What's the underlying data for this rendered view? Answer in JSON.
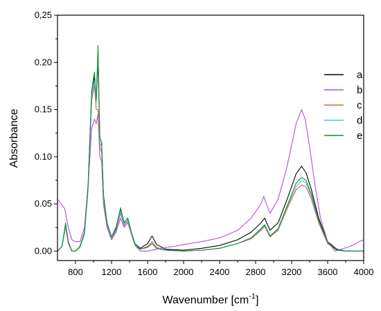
{
  "chart_data": {
    "type": "line",
    "title": "",
    "xlabel": "Wavenumber [cm",
    "xlabel_sup": "-1",
    "xlabel_close": "]",
    "ylabel": "Absorbance",
    "xlim": [
      600,
      4000
    ],
    "ylim": [
      -0.01,
      0.25
    ],
    "x_ticks": [
      800,
      1200,
      1600,
      2000,
      2400,
      2800,
      3200,
      3600,
      4000
    ],
    "x_tick_labels": [
      "800",
      "1200",
      "1600",
      "2000",
      "2400",
      "2800",
      "3200",
      "3600",
      "4000"
    ],
    "y_ticks": [
      0.0,
      0.05,
      0.1,
      0.15,
      0.2,
      0.25
    ],
    "y_tick_labels": [
      "0.00",
      "0.05",
      "0.10",
      "0.15",
      "0.20",
      "0,25"
    ],
    "grid": false,
    "legend_position": "right",
    "series": [
      {
        "name": "a",
        "color": "#000000",
        "points": [
          [
            600,
            0.0
          ],
          [
            650,
            0.005
          ],
          [
            690,
            0.028
          ],
          [
            720,
            0.01
          ],
          [
            760,
            0.0
          ],
          [
            800,
            0.0
          ],
          [
            850,
            0.005
          ],
          [
            900,
            0.02
          ],
          [
            940,
            0.07
          ],
          [
            980,
            0.17
          ],
          [
            1010,
            0.185
          ],
          [
            1030,
            0.16
          ],
          [
            1050,
            0.2
          ],
          [
            1070,
            0.12
          ],
          [
            1090,
            0.115
          ],
          [
            1110,
            0.06
          ],
          [
            1150,
            0.03
          ],
          [
            1200,
            0.015
          ],
          [
            1250,
            0.025
          ],
          [
            1300,
            0.045
          ],
          [
            1340,
            0.03
          ],
          [
            1380,
            0.035
          ],
          [
            1420,
            0.02
          ],
          [
            1460,
            0.008
          ],
          [
            1520,
            0.003
          ],
          [
            1600,
            0.008
          ],
          [
            1650,
            0.016
          ],
          [
            1700,
            0.007
          ],
          [
            1800,
            0.002
          ],
          [
            2000,
            0.001
          ],
          [
            2200,
            0.003
          ],
          [
            2400,
            0.006
          ],
          [
            2600,
            0.012
          ],
          [
            2750,
            0.02
          ],
          [
            2860,
            0.03
          ],
          [
            2900,
            0.035
          ],
          [
            2960,
            0.022
          ],
          [
            3050,
            0.03
          ],
          [
            3150,
            0.055
          ],
          [
            3250,
            0.082
          ],
          [
            3310,
            0.09
          ],
          [
            3360,
            0.083
          ],
          [
            3420,
            0.065
          ],
          [
            3500,
            0.035
          ],
          [
            3600,
            0.01
          ],
          [
            3700,
            0.002
          ],
          [
            3800,
            0.0
          ],
          [
            4000,
            0.0
          ]
        ]
      },
      {
        "name": "b",
        "color": "#b04fe0",
        "points": [
          [
            600,
            0.055
          ],
          [
            640,
            0.05
          ],
          [
            680,
            0.045
          ],
          [
            720,
            0.025
          ],
          [
            760,
            0.012
          ],
          [
            800,
            0.01
          ],
          [
            850,
            0.01
          ],
          [
            900,
            0.025
          ],
          [
            940,
            0.07
          ],
          [
            980,
            0.13
          ],
          [
            1010,
            0.14
          ],
          [
            1030,
            0.135
          ],
          [
            1050,
            0.145
          ],
          [
            1070,
            0.1
          ],
          [
            1090,
            0.095
          ],
          [
            1110,
            0.05
          ],
          [
            1150,
            0.025
          ],
          [
            1200,
            0.012
          ],
          [
            1250,
            0.02
          ],
          [
            1300,
            0.035
          ],
          [
            1340,
            0.025
          ],
          [
            1380,
            0.03
          ],
          [
            1420,
            0.018
          ],
          [
            1460,
            0.006
          ],
          [
            1520,
            0.0
          ],
          [
            1600,
            0.0
          ],
          [
            1700,
            0.002
          ],
          [
            1800,
            0.004
          ],
          [
            1900,
            0.005
          ],
          [
            2000,
            0.007
          ],
          [
            2200,
            0.01
          ],
          [
            2400,
            0.014
          ],
          [
            2600,
            0.022
          ],
          [
            2750,
            0.035
          ],
          [
            2860,
            0.05
          ],
          [
            2890,
            0.058
          ],
          [
            2920,
            0.05
          ],
          [
            2960,
            0.04
          ],
          [
            3050,
            0.055
          ],
          [
            3150,
            0.09
          ],
          [
            3250,
            0.135
          ],
          [
            3310,
            0.15
          ],
          [
            3350,
            0.14
          ],
          [
            3400,
            0.11
          ],
          [
            3460,
            0.07
          ],
          [
            3520,
            0.035
          ],
          [
            3600,
            0.01
          ],
          [
            3680,
            0.0
          ],
          [
            3750,
            0.002
          ],
          [
            3850,
            0.005
          ],
          [
            3950,
            0.01
          ],
          [
            4000,
            0.012
          ]
        ]
      },
      {
        "name": "c",
        "color": "#e0604a",
        "points": [
          [
            600,
            0.0
          ],
          [
            650,
            0.005
          ],
          [
            690,
            0.025
          ],
          [
            720,
            0.008
          ],
          [
            760,
            0.0
          ],
          [
            800,
            0.0
          ],
          [
            850,
            0.004
          ],
          [
            900,
            0.018
          ],
          [
            940,
            0.065
          ],
          [
            980,
            0.16
          ],
          [
            1010,
            0.175
          ],
          [
            1030,
            0.15
          ],
          [
            1050,
            0.15
          ],
          [
            1070,
            0.11
          ],
          [
            1090,
            0.105
          ],
          [
            1110,
            0.055
          ],
          [
            1150,
            0.028
          ],
          [
            1200,
            0.013
          ],
          [
            1250,
            0.022
          ],
          [
            1300,
            0.04
          ],
          [
            1340,
            0.027
          ],
          [
            1380,
            0.032
          ],
          [
            1420,
            0.018
          ],
          [
            1460,
            0.006
          ],
          [
            1520,
            0.002
          ],
          [
            1600,
            0.005
          ],
          [
            1650,
            0.01
          ],
          [
            1700,
            0.004
          ],
          [
            1800,
            0.001
          ],
          [
            2000,
            0.0
          ],
          [
            2200,
            0.001
          ],
          [
            2400,
            0.003
          ],
          [
            2600,
            0.008
          ],
          [
            2750,
            0.013
          ],
          [
            2860,
            0.022
          ],
          [
            2900,
            0.026
          ],
          [
            2960,
            0.015
          ],
          [
            3050,
            0.022
          ],
          [
            3150,
            0.045
          ],
          [
            3250,
            0.065
          ],
          [
            3310,
            0.07
          ],
          [
            3360,
            0.068
          ],
          [
            3420,
            0.055
          ],
          [
            3500,
            0.03
          ],
          [
            3600,
            0.008
          ],
          [
            3700,
            0.001
          ],
          [
            3800,
            0.0
          ],
          [
            4000,
            0.0
          ]
        ]
      },
      {
        "name": "d",
        "color": "#3fc4e6",
        "points": [
          [
            600,
            0.0
          ],
          [
            650,
            0.005
          ],
          [
            690,
            0.027
          ],
          [
            720,
            0.009
          ],
          [
            760,
            0.0
          ],
          [
            800,
            0.0
          ],
          [
            850,
            0.004
          ],
          [
            900,
            0.019
          ],
          [
            940,
            0.068
          ],
          [
            980,
            0.165
          ],
          [
            1010,
            0.18
          ],
          [
            1030,
            0.155
          ],
          [
            1050,
            0.21
          ],
          [
            1070,
            0.115
          ],
          [
            1090,
            0.11
          ],
          [
            1110,
            0.057
          ],
          [
            1150,
            0.029
          ],
          [
            1200,
            0.014
          ],
          [
            1250,
            0.023
          ],
          [
            1300,
            0.042
          ],
          [
            1340,
            0.028
          ],
          [
            1380,
            0.033
          ],
          [
            1420,
            0.019
          ],
          [
            1460,
            0.007
          ],
          [
            1520,
            0.002
          ],
          [
            1600,
            0.004
          ],
          [
            1650,
            0.008
          ],
          [
            1700,
            0.003
          ],
          [
            1800,
            0.001
          ],
          [
            2000,
            0.0
          ],
          [
            2200,
            0.001
          ],
          [
            2400,
            0.003
          ],
          [
            2600,
            0.008
          ],
          [
            2750,
            0.014
          ],
          [
            2860,
            0.023
          ],
          [
            2900,
            0.027
          ],
          [
            2960,
            0.016
          ],
          [
            3050,
            0.023
          ],
          [
            3150,
            0.047
          ],
          [
            3250,
            0.068
          ],
          [
            3310,
            0.075
          ],
          [
            3360,
            0.072
          ],
          [
            3420,
            0.058
          ],
          [
            3500,
            0.032
          ],
          [
            3600,
            0.009
          ],
          [
            3700,
            0.001
          ],
          [
            3800,
            0.0
          ],
          [
            4000,
            0.0
          ]
        ]
      },
      {
        "name": "e",
        "color": "#1a8a3a",
        "points": [
          [
            600,
            0.0
          ],
          [
            650,
            0.005
          ],
          [
            690,
            0.03
          ],
          [
            720,
            0.01
          ],
          [
            760,
            0.0
          ],
          [
            800,
            0.0
          ],
          [
            850,
            0.005
          ],
          [
            900,
            0.02
          ],
          [
            940,
            0.07
          ],
          [
            980,
            0.17
          ],
          [
            1010,
            0.19
          ],
          [
            1030,
            0.16
          ],
          [
            1050,
            0.218
          ],
          [
            1070,
            0.12
          ],
          [
            1090,
            0.115
          ],
          [
            1110,
            0.06
          ],
          [
            1150,
            0.03
          ],
          [
            1200,
            0.015
          ],
          [
            1250,
            0.024
          ],
          [
            1300,
            0.046
          ],
          [
            1340,
            0.03
          ],
          [
            1380,
            0.035
          ],
          [
            1420,
            0.02
          ],
          [
            1460,
            0.008
          ],
          [
            1520,
            0.002
          ],
          [
            1600,
            0.004
          ],
          [
            1650,
            0.008
          ],
          [
            1700,
            0.003
          ],
          [
            1800,
            0.001
          ],
          [
            2000,
            0.0
          ],
          [
            2200,
            0.001
          ],
          [
            2400,
            0.003
          ],
          [
            2600,
            0.008
          ],
          [
            2750,
            0.014
          ],
          [
            2860,
            0.024
          ],
          [
            2900,
            0.028
          ],
          [
            2960,
            0.016
          ],
          [
            3050,
            0.024
          ],
          [
            3150,
            0.048
          ],
          [
            3250,
            0.072
          ],
          [
            3310,
            0.078
          ],
          [
            3360,
            0.075
          ],
          [
            3420,
            0.06
          ],
          [
            3500,
            0.033
          ],
          [
            3600,
            0.009
          ],
          [
            3700,
            0.001
          ],
          [
            3800,
            0.0
          ],
          [
            4000,
            0.0
          ]
        ]
      }
    ]
  }
}
